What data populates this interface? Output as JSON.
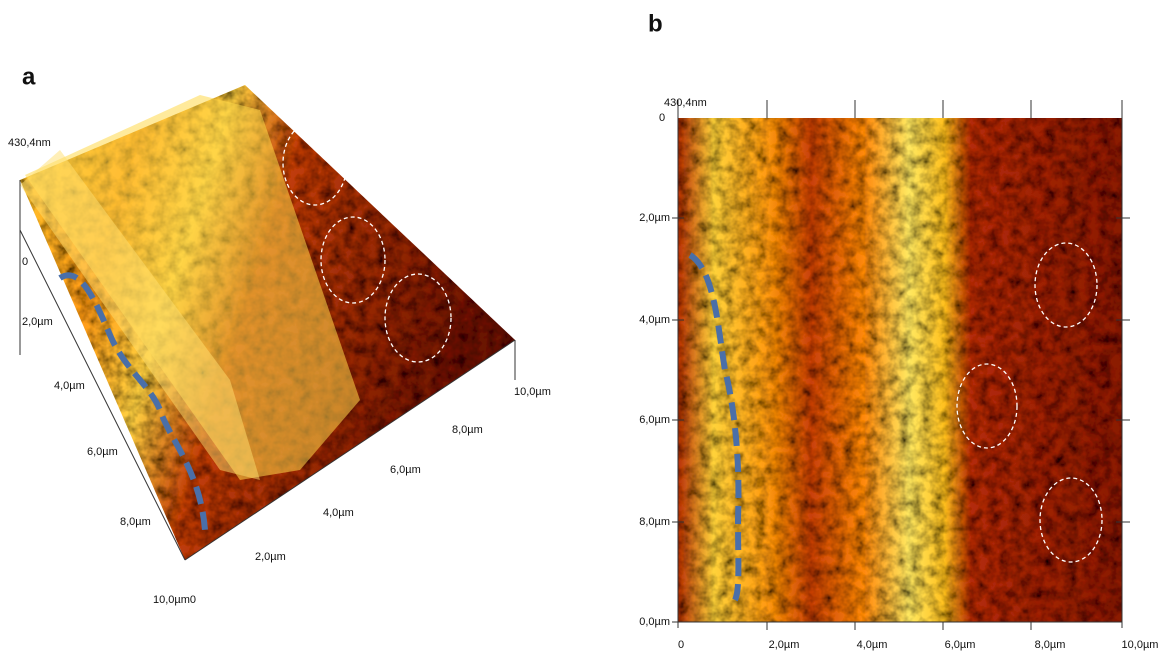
{
  "panels": [
    {
      "label": "a",
      "z_label": "430,4nm",
      "z_zero": "0",
      "y_axis_labels": [
        "2,0µm",
        "4,0µm",
        "6,0µm",
        "8,0µm",
        "10,0µm0"
      ],
      "x_axis_labels": [
        "2,0µm",
        "4,0µm",
        "6,0µm",
        "8,0µm",
        "10,0µm"
      ]
    },
    {
      "label": "b",
      "z_label": "430,4nm",
      "z_zero": "0",
      "y_axis_labels": [
        "2,0µm",
        "4,0µm",
        "6,0µm",
        "8,0µm",
        "0,0µm"
      ],
      "x_axis_labels": [
        "0",
        "2,0µm",
        "4,0µm",
        "6,0µm",
        "8,0µm",
        "10,0µm"
      ]
    }
  ]
}
